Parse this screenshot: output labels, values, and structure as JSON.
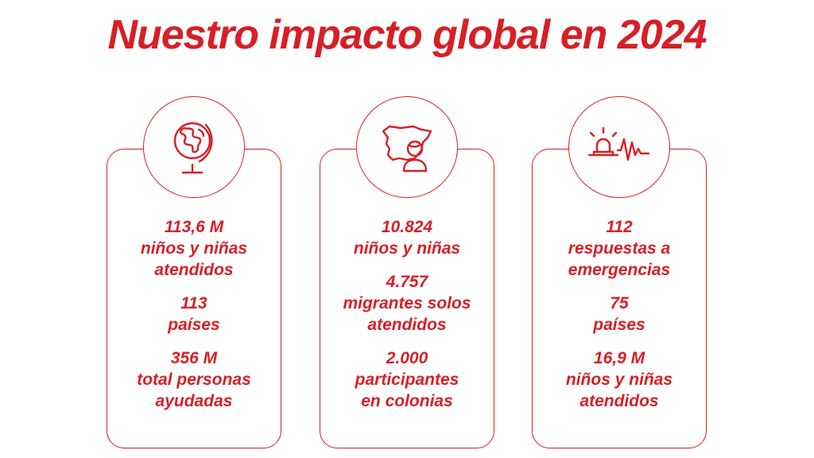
{
  "title": "Nuestro impacto global en 2024",
  "colors": {
    "accent": "#d71f26",
    "background": "#ffffff"
  },
  "cards": [
    {
      "icon": "globe-icon",
      "stats": [
        {
          "value": "113,6 M",
          "label_lines": [
            "niños y niñas",
            "atendidos"
          ]
        },
        {
          "value": "113",
          "label_lines": [
            "países"
          ]
        },
        {
          "value": "356 M",
          "label_lines": [
            "total personas",
            "ayudadas"
          ]
        }
      ]
    },
    {
      "icon": "spain-map-child-icon",
      "stats": [
        {
          "value": "10.824",
          "label_lines": [
            "niños y niñas"
          ]
        },
        {
          "value": "4.757",
          "label_lines": [
            "migrantes solos",
            "atendidos"
          ]
        },
        {
          "value": "2.000",
          "label_lines": [
            "participantes",
            "en colonias"
          ]
        }
      ]
    },
    {
      "icon": "emergency-alarm-icon",
      "stats": [
        {
          "value": "112",
          "label_lines": [
            "respuestas a",
            "emergencias"
          ]
        },
        {
          "value": "75",
          "label_lines": [
            "países"
          ]
        },
        {
          "value": "16,9 M",
          "label_lines": [
            "niños y niñas",
            "atendidos"
          ]
        }
      ]
    }
  ]
}
